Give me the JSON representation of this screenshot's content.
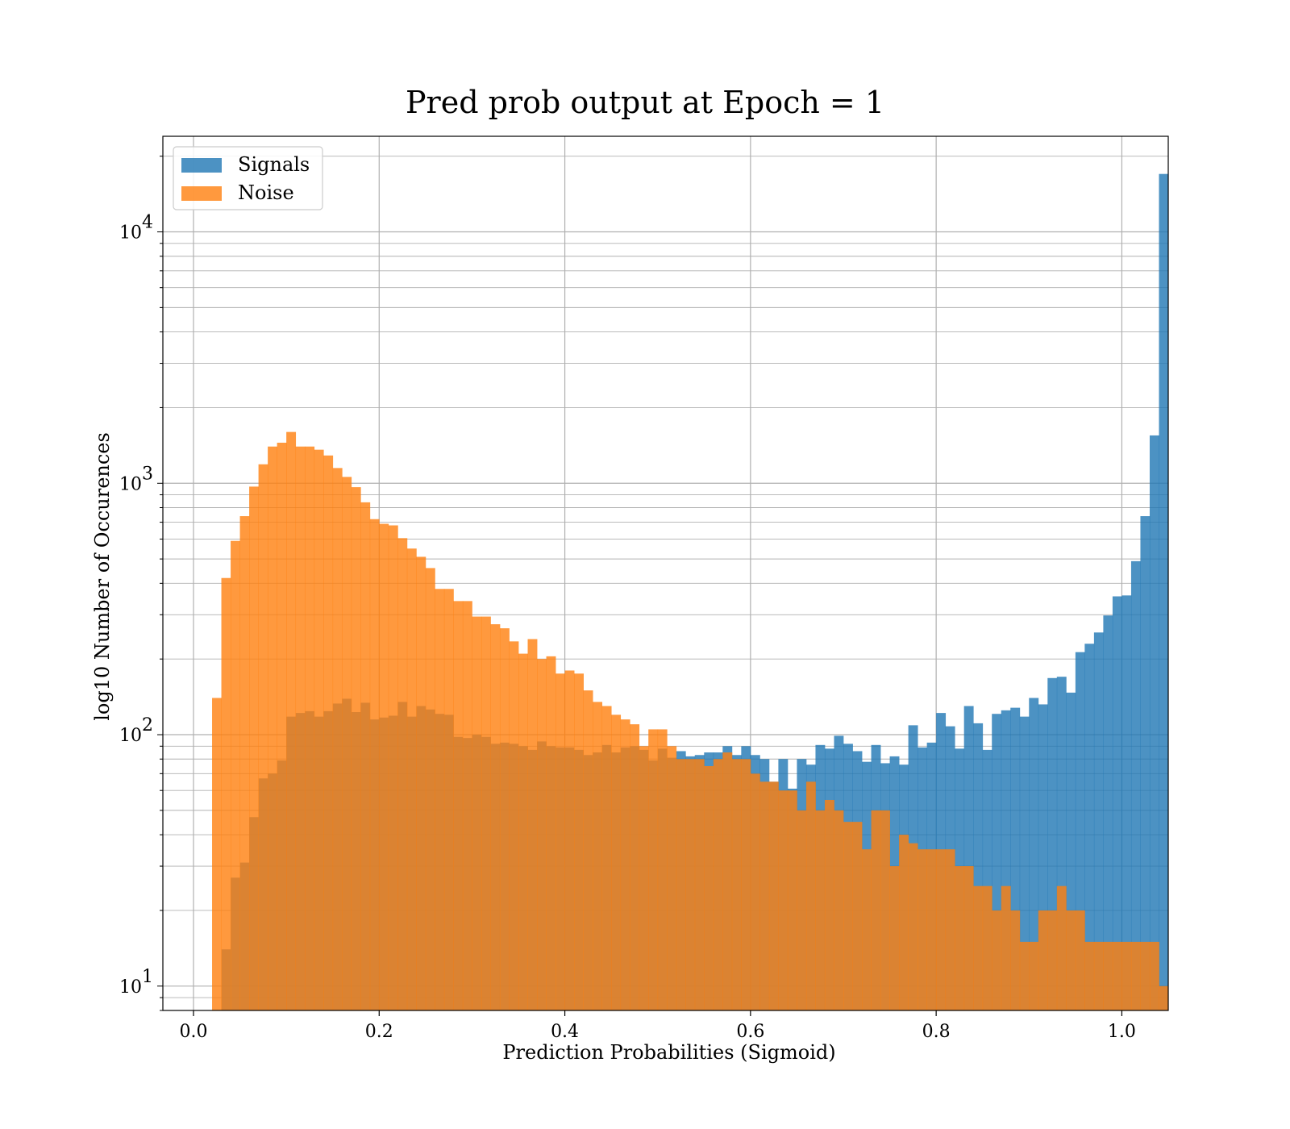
{
  "chart_data": {
    "type": "bar",
    "title": "Pred prob output at Epoch = 1",
    "xlabel": "Prediction Probabilities (Sigmoid)",
    "ylabel": "log10 Number of Occurences",
    "xlim": [
      -0.033,
      1.05
    ],
    "ylim": [
      8,
      24000
    ],
    "yscale": "log",
    "grid": true,
    "legend_position": "upper-left",
    "x_ticks": [
      {
        "value": 0.0,
        "label": "0.0"
      },
      {
        "value": 0.2,
        "label": "0.2"
      },
      {
        "value": 0.4,
        "label": "0.4"
      },
      {
        "value": 0.6,
        "label": "0.6"
      },
      {
        "value": 0.8,
        "label": "0.8"
      },
      {
        "value": 1.0,
        "label": "1.0"
      }
    ],
    "y_ticks": [
      {
        "value": 10,
        "base": "10",
        "exp": "1"
      },
      {
        "value": 100,
        "base": "10",
        "exp": "2"
      },
      {
        "value": 1000,
        "base": "10",
        "exp": "3"
      },
      {
        "value": 10000,
        "base": "10",
        "exp": "4"
      }
    ],
    "bin_start": 0.0,
    "bin_width": 0.01,
    "series": [
      {
        "name": "Signals",
        "color": "#1f77b4",
        "alpha": 0.8,
        "values": [
          0,
          0,
          0,
          14,
          27,
          31,
          47,
          67,
          70,
          79,
          118,
          122,
          124,
          118,
          124,
          133,
          139,
          123,
          134,
          115,
          117,
          119,
          135,
          118,
          130,
          126,
          121,
          120,
          98,
          97,
          100,
          98,
          92,
          93,
          92,
          90,
          87,
          94,
          90,
          89,
          89,
          87,
          83,
          85,
          91,
          85,
          89,
          90,
          87,
          79,
          88,
          81,
          86,
          82,
          83,
          85,
          85,
          90,
          83,
          90,
          83,
          80,
          65,
          80,
          61,
          80,
          76,
          91,
          88,
          99,
          92,
          86,
          78,
          91,
          77,
          82,
          76,
          109,
          89,
          93,
          122,
          108,
          88,
          130,
          111,
          87,
          121,
          125,
          128,
          118,
          140,
          132,
          168,
          170,
          147,
          213,
          230,
          255,
          298,
          355,
          358,
          490,
          740,
          1550,
          17000,
          0
        ]
      },
      {
        "name": "Noise",
        "color": "#ff7f0e",
        "alpha": 0.8,
        "values": [
          0,
          0,
          140,
          420,
          590,
          740,
          970,
          1190,
          1400,
          1450,
          1600,
          1400,
          1400,
          1360,
          1290,
          1150,
          1060,
          965,
          840,
          720,
          690,
          680,
          605,
          550,
          510,
          460,
          380,
          380,
          340,
          340,
          295,
          295,
          275,
          265,
          235,
          210,
          240,
          200,
          205,
          175,
          180,
          175,
          150,
          135,
          130,
          120,
          115,
          110,
          90,
          105,
          105,
          90,
          80,
          80,
          80,
          75,
          80,
          85,
          80,
          80,
          70,
          65,
          65,
          60,
          60,
          50,
          65,
          50,
          55,
          50,
          45,
          45,
          35,
          50,
          50,
          30,
          40,
          37,
          35,
          35,
          35,
          35,
          30,
          30,
          25,
          25,
          20,
          25,
          20,
          15,
          15,
          20,
          20,
          25,
          20,
          20,
          15,
          15,
          15,
          15,
          15,
          15,
          15,
          15,
          10,
          0
        ]
      }
    ]
  }
}
